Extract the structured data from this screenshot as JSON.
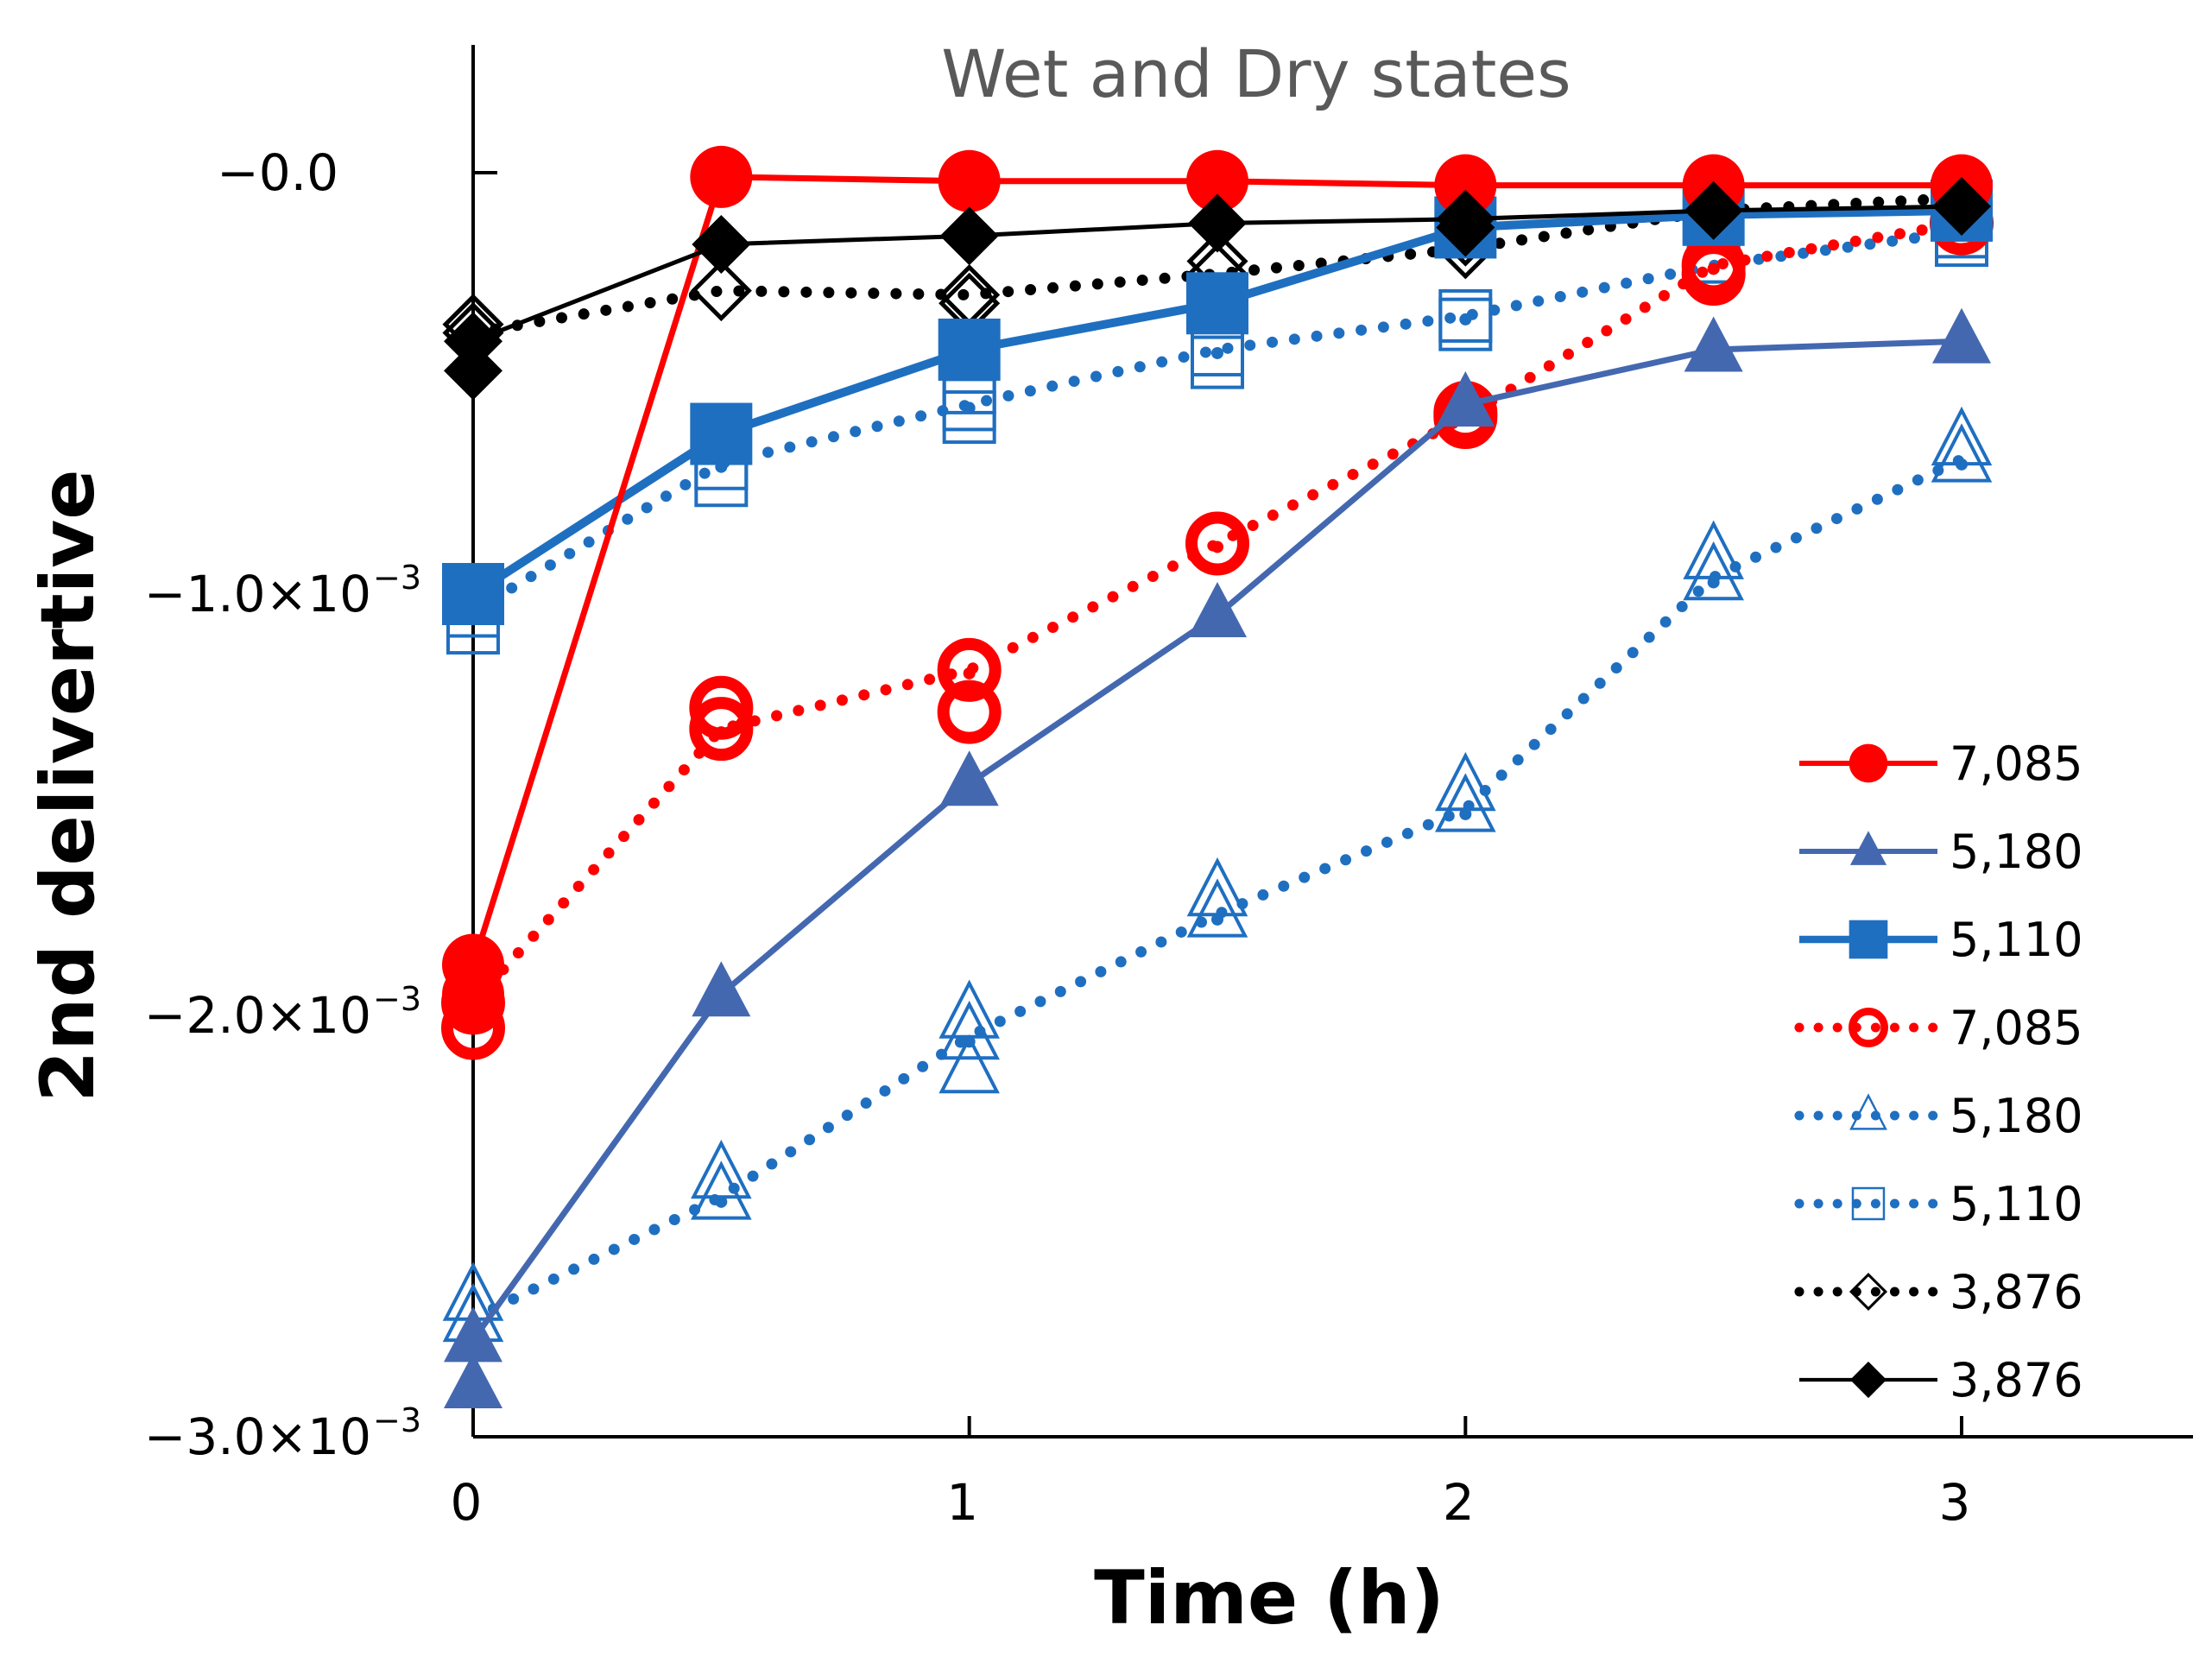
{
  "chart_data": {
    "type": "line",
    "title": "Wet and Dry states",
    "xlabel": "Time (h)",
    "ylabel": "2nd delivertive",
    "xlim": [
      0,
      3.45
    ],
    "ylim": [
      -3.0,
      0.27
    ],
    "x_ticks": [
      {
        "value": 0,
        "label": "0"
      },
      {
        "value": 1,
        "label": "1"
      },
      {
        "value": 2,
        "label": "2"
      },
      {
        "value": 3,
        "label": "3"
      }
    ],
    "y_ticks": [
      {
        "value": 0,
        "label": "−0.0",
        "exp": ""
      },
      {
        "value": -1,
        "label": "−1.0×10",
        "exp": "−3"
      },
      {
        "value": -2,
        "label": "−2.0×10",
        "exp": "−3"
      },
      {
        "value": -3,
        "label": "−3.0×10",
        "exp": "−3"
      }
    ],
    "y_unit_note": "values in units of 10^-3",
    "legend_position": "bottom-right",
    "series": [
      {
        "name": "7,085",
        "color": "#ff0000",
        "marker": "circle",
        "filled": true,
        "dash": "solid",
        "x": [
          0,
          0.5,
          1,
          1.5,
          2,
          2.5,
          3
        ],
        "y": [
          -1.88,
          -0.01,
          -0.02,
          -0.02,
          -0.03,
          -0.03,
          -0.03
        ],
        "extra": [
          [
            0,
            -1.95
          ]
        ]
      },
      {
        "name": "5,180",
        "color": "#4468b0",
        "marker": "triangle",
        "filled": true,
        "dash": "solid",
        "x": [
          0,
          0.5,
          1,
          1.5,
          2,
          2.5,
          3
        ],
        "y": [
          -2.77,
          -1.95,
          -1.45,
          -1.05,
          -0.55,
          -0.42,
          -0.4
        ],
        "extra": [
          [
            0,
            -2.88
          ]
        ]
      },
      {
        "name": "5,110",
        "color": "#1f6fc1",
        "marker": "square",
        "filled": true,
        "dash": "solid",
        "x": [
          0,
          0.5,
          1,
          1.5,
          2,
          2.5,
          3
        ],
        "y": [
          -1.0,
          -0.62,
          -0.42,
          -0.31,
          -0.13,
          -0.1,
          -0.09
        ],
        "extra": []
      },
      {
        "name": "7,085",
        "color": "#ff0000",
        "marker": "circle",
        "filled": false,
        "dash": "dot",
        "x": [
          0,
          0.5,
          1,
          1.5,
          2,
          2.5,
          3
        ],
        "y": [
          -1.97,
          -1.32,
          -1.18,
          -0.88,
          -0.58,
          -0.22,
          -0.12
        ],
        "extra": [
          [
            0,
            -2.03
          ],
          [
            0.5,
            -1.27
          ],
          [
            1,
            -1.28
          ],
          [
            2,
            -0.57
          ],
          [
            2.5,
            -0.24
          ]
        ]
      },
      {
        "name": "5,180",
        "color": "#1f6fc1",
        "marker": "triangle",
        "filled": false,
        "dash": "dot",
        "x": [
          0,
          0.5,
          1,
          1.5,
          2,
          2.5,
          3
        ],
        "y": [
          -2.72,
          -2.43,
          -2.05,
          -1.76,
          -1.51,
          -0.96,
          -0.68
        ],
        "extra": [
          [
            0,
            -2.67
          ],
          [
            0.5,
            -2.38
          ],
          [
            1,
            -2.13
          ],
          [
            1,
            -2.0
          ],
          [
            1.5,
            -1.71
          ],
          [
            2,
            -1.46
          ],
          [
            2.5,
            -0.91
          ],
          [
            3,
            -0.64
          ]
        ]
      },
      {
        "name": "5,110",
        "color": "#1f6fc1",
        "marker": "square",
        "filled": false,
        "dash": "dot",
        "x": [
          0,
          0.5,
          1,
          1.5,
          2,
          2.5,
          3
        ],
        "y": [
          -1.04,
          -0.69,
          -0.55,
          -0.42,
          -0.34,
          -0.22,
          -0.14
        ],
        "extra": [
          [
            0,
            -1.08
          ],
          [
            0.5,
            -0.73
          ],
          [
            1,
            -0.58
          ],
          [
            1,
            -0.51
          ],
          [
            1.5,
            -0.45
          ],
          [
            2,
            -0.36
          ],
          [
            2.5,
            -0.2
          ],
          [
            3,
            -0.16
          ]
        ]
      },
      {
        "name": "3,876",
        "color": "#000000",
        "marker": "diamond",
        "filled": false,
        "dash": "dot",
        "x": [
          0,
          0.5,
          1,
          1.5,
          2,
          2.5,
          3
        ],
        "y": [
          -0.38,
          -0.28,
          -0.29,
          -0.24,
          -0.18,
          -0.09,
          -0.06
        ],
        "extra": [
          [
            0,
            -0.36
          ],
          [
            1,
            -0.31
          ],
          [
            1.5,
            -0.21
          ],
          [
            2,
            -0.15
          ],
          [
            2.5,
            -0.07
          ],
          [
            3,
            -0.05
          ]
        ]
      },
      {
        "name": "3,876",
        "color": "#000000",
        "marker": "diamond",
        "filled": true,
        "dash": "solid",
        "x": [
          0,
          0.5,
          1,
          1.5,
          2,
          2.5,
          3
        ],
        "y": [
          -0.4,
          -0.17,
          -0.15,
          -0.12,
          -0.11,
          -0.09,
          -0.08
        ],
        "extra": [
          [
            0,
            -0.47
          ],
          [
            2,
            -0.13
          ]
        ]
      }
    ]
  }
}
